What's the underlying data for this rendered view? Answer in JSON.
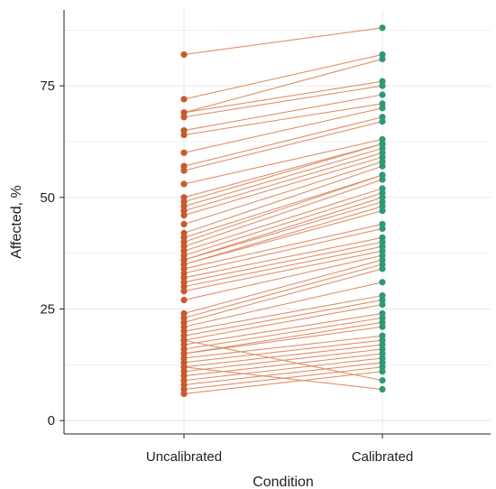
{
  "chart_data": {
    "type": "line",
    "subtype": "paired-slope",
    "title": "",
    "xlabel": "Condition",
    "ylabel": "Affected, %",
    "categories": [
      "Uncalibrated",
      "Calibrated"
    ],
    "ylim": [
      -3,
      92
    ],
    "yticks": [
      0,
      25,
      50,
      75
    ],
    "grid": true,
    "legend": "none",
    "colors": {
      "uncalibrated_point": "#c65a2e",
      "calibrated_point": "#2e9a74",
      "line": "#e0906a",
      "grid": "#e8e8e8",
      "axis": "#222222"
    },
    "pairs": [
      [
        82,
        88
      ],
      [
        72,
        82
      ],
      [
        69,
        81
      ],
      [
        69,
        76
      ],
      [
        68,
        75
      ],
      [
        65,
        73
      ],
      [
        64,
        71
      ],
      [
        60,
        70
      ],
      [
        57,
        68
      ],
      [
        56,
        67
      ],
      [
        53,
        63
      ],
      [
        50,
        62
      ],
      [
        49,
        62
      ],
      [
        48,
        61
      ],
      [
        47,
        60
      ],
      [
        46,
        59
      ],
      [
        44,
        58
      ],
      [
        42,
        57
      ],
      [
        41,
        55
      ],
      [
        40,
        55
      ],
      [
        39,
        54
      ],
      [
        38,
        52
      ],
      [
        37,
        51
      ],
      [
        36,
        50
      ],
      [
        36,
        49
      ],
      [
        35,
        48
      ],
      [
        35,
        47
      ],
      [
        34,
        44
      ],
      [
        33,
        43
      ],
      [
        32,
        41
      ],
      [
        31,
        40
      ],
      [
        30,
        39
      ],
      [
        29,
        38
      ],
      [
        27,
        37
      ],
      [
        24,
        36
      ],
      [
        23,
        35
      ],
      [
        22,
        34
      ],
      [
        21,
        31
      ],
      [
        20,
        28
      ],
      [
        19,
        27
      ],
      [
        18,
        26
      ],
      [
        17,
        24
      ],
      [
        16,
        23
      ],
      [
        15,
        22
      ],
      [
        15,
        21
      ],
      [
        14,
        19
      ],
      [
        13,
        18
      ],
      [
        12,
        17
      ],
      [
        11,
        16
      ],
      [
        10,
        15
      ],
      [
        9,
        14
      ],
      [
        8,
        13
      ],
      [
        7,
        12
      ],
      [
        6,
        11
      ],
      [
        18,
        9
      ],
      [
        12,
        7
      ]
    ]
  }
}
